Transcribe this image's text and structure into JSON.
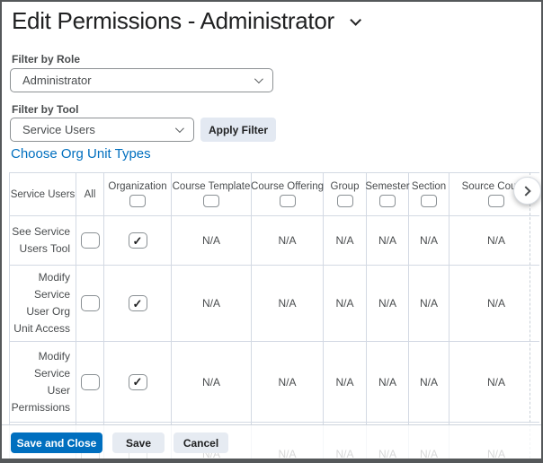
{
  "page": {
    "title": "Edit Permissions - Administrator"
  },
  "filters": {
    "role_label": "Filter by Role",
    "role_value": "Administrator",
    "tool_label": "Filter by Tool",
    "tool_value": "Service Users",
    "apply_button": "Apply Filter"
  },
  "choose_link": "Choose Org Unit Types",
  "table": {
    "na_text": "N/A",
    "columns": [
      {
        "label": "Service Users",
        "has_checkbox": false
      },
      {
        "label": "All",
        "has_checkbox": false
      },
      {
        "label": "Organization",
        "has_checkbox": true,
        "checked": false
      },
      {
        "label": "Course Template",
        "has_checkbox": true,
        "checked": false
      },
      {
        "label": "Course Offering",
        "has_checkbox": true,
        "checked": false
      },
      {
        "label": "Group",
        "has_checkbox": true,
        "checked": false
      },
      {
        "label": "Semester",
        "has_checkbox": true,
        "checked": false
      },
      {
        "label": "Section",
        "has_checkbox": true,
        "checked": false
      },
      {
        "label": "Source Course",
        "has_checkbox": true,
        "checked": false
      }
    ],
    "rows": [
      {
        "label": "See Service\nUsers Tool",
        "cells": [
          {
            "type": "checkbox",
            "checked": false
          },
          {
            "type": "checkbox",
            "checked": true
          },
          {
            "type": "na"
          },
          {
            "type": "na"
          },
          {
            "type": "na"
          },
          {
            "type": "na"
          },
          {
            "type": "na"
          },
          {
            "type": "na"
          }
        ]
      },
      {
        "label": "Modify\nService\nUser Org\nUnit Access",
        "cells": [
          {
            "type": "checkbox",
            "checked": false
          },
          {
            "type": "checkbox",
            "checked": true
          },
          {
            "type": "na"
          },
          {
            "type": "na"
          },
          {
            "type": "na"
          },
          {
            "type": "na"
          },
          {
            "type": "na"
          },
          {
            "type": "na"
          }
        ]
      },
      {
        "label": "Modify\nService\nUser\nPermissions",
        "cells": [
          {
            "type": "checkbox",
            "checked": false
          },
          {
            "type": "checkbox",
            "checked": true
          },
          {
            "type": "na"
          },
          {
            "type": "na"
          },
          {
            "type": "na"
          },
          {
            "type": "na"
          },
          {
            "type": "na"
          },
          {
            "type": "na"
          }
        ]
      },
      {
        "label": "",
        "cells": [
          {
            "type": "checkbox",
            "checked": false
          },
          {
            "type": "checkbox",
            "checked": false
          },
          {
            "type": "na"
          },
          {
            "type": "na"
          },
          {
            "type": "na"
          },
          {
            "type": "na"
          },
          {
            "type": "na"
          },
          {
            "type": "na"
          }
        ]
      }
    ]
  },
  "footer": {
    "save_and_close": "Save and Close",
    "save": "Save",
    "cancel": "Cancel"
  },
  "icons": {
    "title_menu": "chevron-down-icon",
    "select_arrow": "chevron-down-icon",
    "table_scroll": "chevron-right-icon"
  },
  "colors": {
    "primary_blue": "#006fbf",
    "button_gray": "#e3e9f2",
    "table_border": "#d3d9e3",
    "body_text": "#494c4e",
    "title_text": "#202122"
  }
}
